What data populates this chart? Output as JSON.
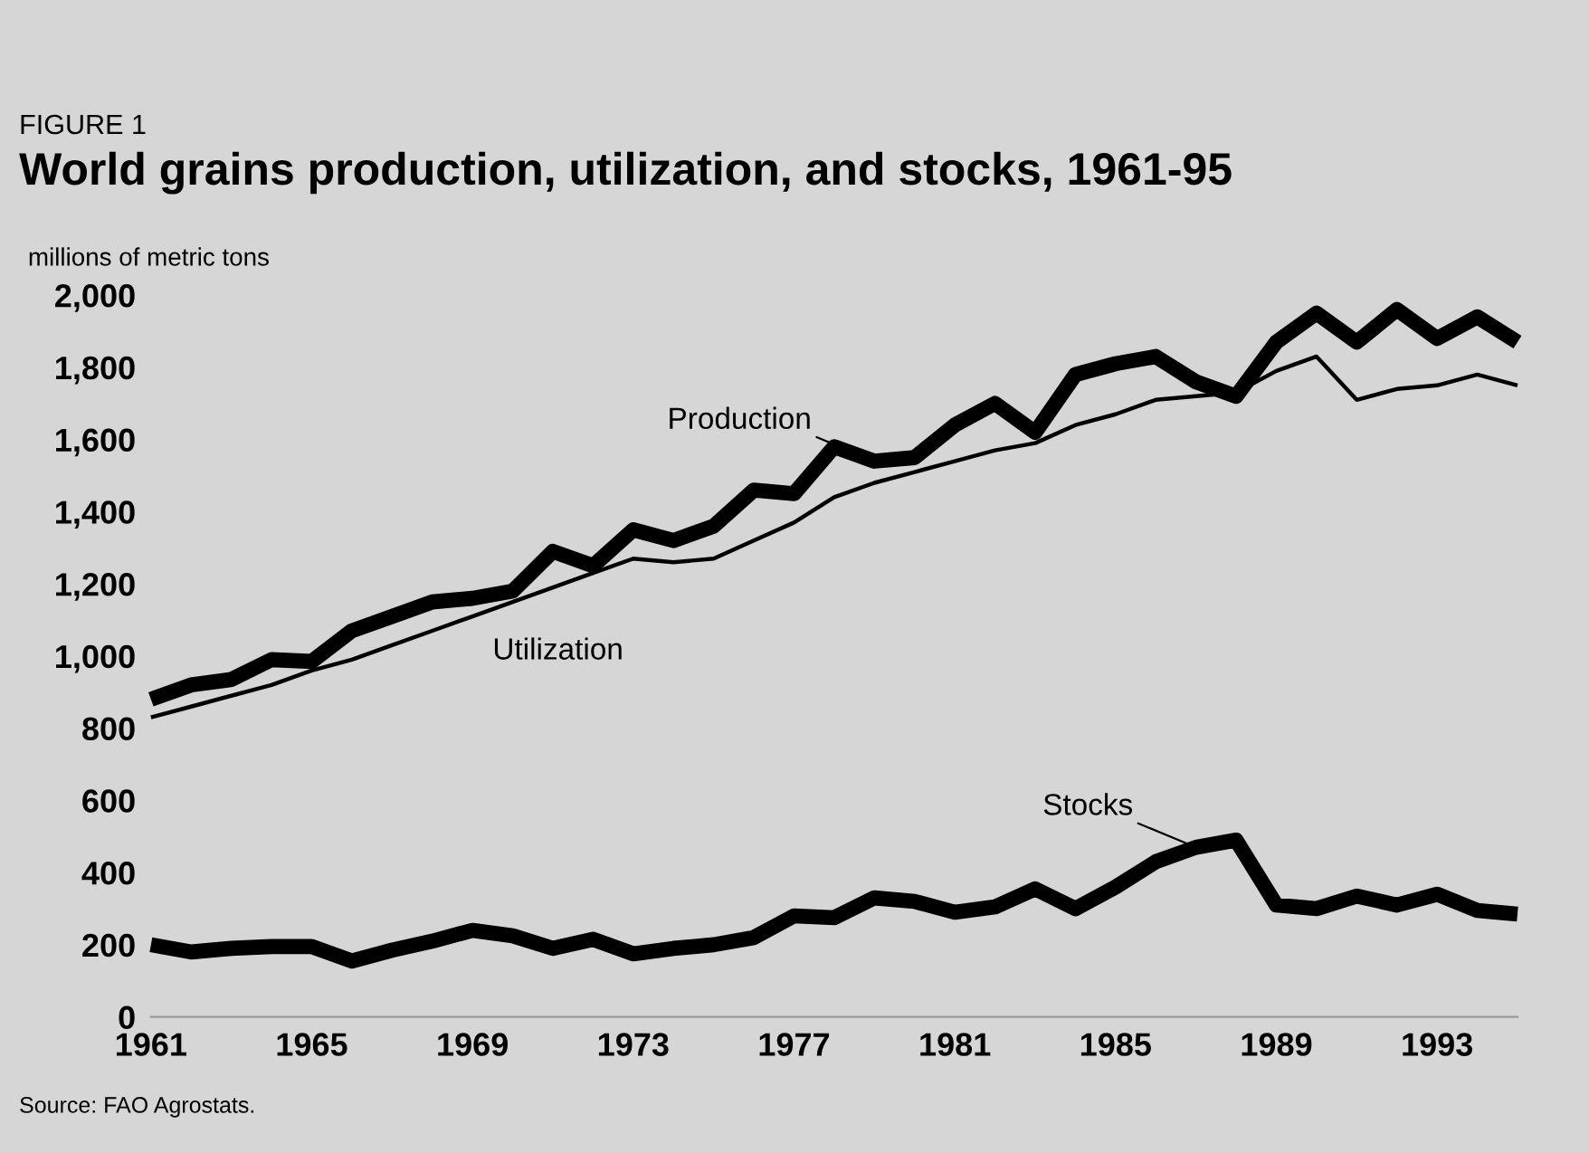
{
  "chart_data": {
    "type": "line",
    "subtitle": "FIGURE 1",
    "title": "World grains production, utilization, and stocks, 1961-95",
    "ylabel": "millions of metric tons",
    "annotations": [
      "Source: FAO Agrostats."
    ],
    "x": [
      1961,
      1962,
      1963,
      1964,
      1965,
      1966,
      1967,
      1968,
      1969,
      1970,
      1971,
      1972,
      1973,
      1974,
      1975,
      1976,
      1977,
      1978,
      1979,
      1980,
      1981,
      1982,
      1983,
      1984,
      1985,
      1986,
      1987,
      1988,
      1989,
      1990,
      1991,
      1992,
      1993,
      1994,
      1995
    ],
    "series": [
      {
        "name": "Production",
        "color": "#000000",
        "values": [
          880,
          920,
          935,
          990,
          985,
          1070,
          1110,
          1150,
          1160,
          1180,
          1290,
          1250,
          1350,
          1320,
          1360,
          1460,
          1450,
          1580,
          1540,
          1550,
          1640,
          1700,
          1620,
          1780,
          1810,
          1830,
          1760,
          1720,
          1870,
          1950,
          1870,
          1960,
          1880,
          1940,
          1870
        ]
      },
      {
        "name": "Utilization",
        "color": "#000000",
        "values": [
          830,
          860,
          890,
          920,
          960,
          990,
          1030,
          1070,
          1110,
          1150,
          1190,
          1230,
          1270,
          1260,
          1270,
          1320,
          1370,
          1440,
          1480,
          1510,
          1540,
          1570,
          1590,
          1640,
          1670,
          1710,
          1720,
          1730,
          1790,
          1830,
          1710,
          1740,
          1750,
          1780,
          1750
        ]
      },
      {
        "name": "Stocks",
        "color": "#000000",
        "values": [
          200,
          180,
          190,
          195,
          195,
          155,
          185,
          210,
          240,
          225,
          190,
          215,
          175,
          190,
          200,
          220,
          280,
          275,
          330,
          320,
          290,
          305,
          355,
          300,
          360,
          430,
          470,
          490,
          310,
          300,
          335,
          310,
          340,
          295,
          285
        ]
      }
    ],
    "xlim": [
      1961,
      1995
    ],
    "xticks": [
      1961,
      1965,
      1969,
      1973,
      1977,
      1981,
      1985,
      1989,
      1993
    ],
    "ylim": [
      0,
      2000
    ],
    "yticks": [
      0,
      200,
      400,
      600,
      800,
      {
        "value": 1000,
        "label": "1,000"
      },
      {
        "value": 1200,
        "label": "1,200"
      },
      {
        "value": 1400,
        "label": "1,400"
      },
      {
        "value": 1600,
        "label": "1,600"
      },
      {
        "value": 1800,
        "label": "1,800"
      },
      {
        "value": 2000,
        "label": "2,000"
      }
    ],
    "grid": false,
    "legend": false,
    "marker": "none",
    "line_style": "solid"
  }
}
